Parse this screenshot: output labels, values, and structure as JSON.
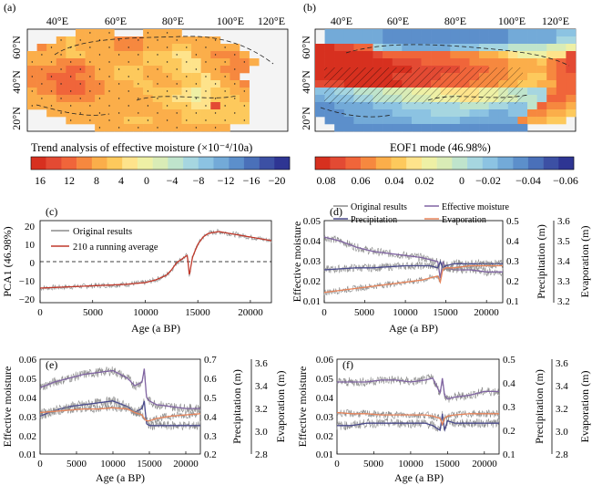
{
  "chart_data": [
    {
      "id": "a",
      "type": "heatmap",
      "panel_label": "(a)",
      "top_ticks": [
        "40°E",
        "60°E",
        "80°E",
        "100°E",
        "120°E"
      ],
      "lat_ticks": [
        "60°N",
        "40°N",
        "20°N"
      ],
      "caption": "Trend analysis of effective moisture (×10⁻⁴/10a)",
      "colorbar": {
        "labels": [
          "16",
          "12",
          "8",
          "4",
          "0",
          "−4",
          "−8",
          "−12",
          "−16",
          "−20"
        ],
        "colors": [
          "#d7301f",
          "#e34a33",
          "#f0653a",
          "#f6883f",
          "#fbae4a",
          "#fdc95c",
          "#fee38b",
          "#eef0a5",
          "#d9ecb6",
          "#bfe4cc",
          "#a6d6e0",
          "#8cc3e2",
          "#73aad8",
          "#5c8fcb",
          "#4a70b9",
          "#3c50a4",
          "#2e3593"
        ]
      },
      "grid": [
        "-----EEEE---EEEE-----------",
        "---EFEEEEDDDEEEEEEEE-------",
        "-DEEFEEEEDDDEEEFFEEEEE-----",
        "EEEEFFEEEEEEFFFGGEEDDDE----",
        "EEEDDDEEEEEEFFFFGGEEEDDE---",
        "DDDDCCDEEFFFEEFFGGEEDDD----",
        "DDCCCDDEEFFFEEEFFFGEED-----",
        "DDDCCCDDEEEFFEEEFFGGEED----",
        "EDDCCCDDEEEEFFFFGHGFFEE----",
        "EEEDDDDEEEEEEFFGGHGFFFE----",
        "EEEEEEEEEEEEEEFFFGGBFFF----",
        "--EEEEEEEEEEEEEEFFFFFFF----",
        "----EEEEEEFFFEEEFFFFFFF----",
        "-------EEEEEEEEEEEEEE------"
      ]
    },
    {
      "id": "b",
      "type": "heatmap",
      "panel_label": "(b)",
      "top_ticks": [
        "40°E",
        "60°E",
        "80°E",
        "100°E",
        "120°E"
      ],
      "lat_ticks": [
        "60°N",
        "40°N",
        "20°N"
      ],
      "caption": "EOF1 mode (46.98%)",
      "colorbar": {
        "labels": [
          "0.08",
          "0.06",
          "0.04",
          "0.02",
          "0",
          "−0.02",
          "−0.04",
          "−0.06"
        ],
        "colors": [
          "#d7301f",
          "#e34a33",
          "#f0653a",
          "#f6883f",
          "#fbae4a",
          "#fdc95c",
          "#fee38b",
          "#eef0a5",
          "#d9ecb6",
          "#bfe4cc",
          "#a6d6e0",
          "#8cc3e2",
          "#73aad8",
          "#5c8fcb",
          "#4a70b9",
          "#3c50a4",
          "#2e3593"
        ]
      },
      "grid": [
        "-MMMMMMNNNNNNNNNNNNNMMMMMLL",
        "-MMMMMMNNNNNNNNNNNNNMMMMMKK",
        "AABBCCKLLMMMMMLLLKKKJJJJIIH",
        "AAAAAABCCCCCCCDDDEEFGHHHGGB",
        "AAAAAAAABBBCCCCCDDDDEEEFDCB",
        "AAAAAAAAAABBBBBCCCDDEEEEDCB",
        "AAAAAAAABBBBBCCCCDDDEEFFDCC",
        "BBBAAAAAABBBCCCCDDDEEFFEECC",
        "LLKKJJJIIIHHHGGGGHHIJJKKDCC",
        "MLLLKKJJJIIIHHHGGHHIIJJKCCD",
        "NNMMMMLLLKKKKKKJJJKKLLJCDDE",
        "NNNMMMMMLLLLKKKKLLMMLLDDEEF",
        "-NNNMMMMMMLLLLLMMMMMMDEEFF-",
        "--NNNNNNNNNNNNNNNNNNNN-----"
      ]
    },
    {
      "id": "c",
      "type": "line",
      "panel_label": "(c)",
      "xlabel": "Age (a BP)",
      "ylabel": "PCA1 (46.98%)",
      "xlim": [
        0,
        22000
      ],
      "ylim": [
        -20,
        25
      ],
      "xticks": [
        "0",
        "5000",
        "10000",
        "15000",
        "20000"
      ],
      "yticks": [
        "20",
        "10",
        "0",
        "−10",
        "−20"
      ],
      "legend": [
        "Original results",
        "210 a running average"
      ],
      "x": [
        0,
        2000,
        4000,
        6000,
        8000,
        10000,
        11000,
        12000,
        12500,
        13000,
        13500,
        14000,
        14200,
        14500,
        15000,
        15500,
        16000,
        17000,
        18000,
        19000,
        20000,
        21000,
        22000
      ],
      "series": [
        {
          "name": "Original results",
          "values": [
            -12,
            -11.5,
            -11,
            -10.5,
            -10,
            -9,
            -7.5,
            -5,
            -2,
            2,
            4,
            6,
            -5,
            5,
            12,
            16,
            18,
            19,
            18,
            17,
            16,
            15,
            14
          ]
        },
        {
          "name": "210 a running average",
          "values": [
            -12,
            -11.5,
            -11,
            -10.5,
            -10,
            -9,
            -7.5,
            -5,
            -2,
            2,
            4,
            6,
            -5,
            5,
            12,
            16,
            18,
            19,
            18,
            17,
            16,
            15,
            14
          ]
        }
      ]
    },
    {
      "id": "d",
      "type": "line",
      "panel_label": "(d)",
      "xlabel": "Age (a BP)",
      "ylabel": "Effective moisture",
      "y2label": "Precipitation (m)",
      "y3label": "Evaporation (m)",
      "xlim": [
        0,
        22000
      ],
      "xticks": [
        "0",
        "5000",
        "10000",
        "15000",
        "20000"
      ],
      "yticks": [
        "0.05",
        "0.04",
        "0.03",
        "0.02",
        "0.01"
      ],
      "y2ticks": [
        "0.5",
        "0.4",
        "0.3",
        "0.2",
        "0.1"
      ],
      "y3ticks": [
        "3.6",
        "3.5",
        "3.4",
        "3.3",
        "3.2"
      ],
      "legend": [
        "Original results",
        "Effective moisture",
        "Precipitation",
        "Evaporation"
      ],
      "x": [
        0,
        2000,
        4000,
        6000,
        8000,
        10000,
        12000,
        13000,
        14000,
        14300,
        14600,
        15000,
        16000,
        18000,
        20000,
        22000
      ],
      "series": [
        {
          "name": "Effective moisture",
          "axis": "left",
          "values": [
            0.042,
            0.04,
            0.037,
            0.035,
            0.034,
            0.033,
            0.032,
            0.031,
            0.03,
            0.022,
            0.03,
            0.027,
            0.026,
            0.026,
            0.025,
            0.025
          ]
        },
        {
          "name": "Precipitation",
          "axis": "right",
          "values": [
            0.26,
            0.265,
            0.27,
            0.27,
            0.275,
            0.28,
            0.28,
            0.28,
            0.27,
            0.3,
            0.27,
            0.28,
            0.29,
            0.29,
            0.29,
            0.29
          ]
        },
        {
          "name": "Evaporation",
          "axis": "right2",
          "values": [
            3.25,
            3.26,
            3.27,
            3.28,
            3.29,
            3.3,
            3.31,
            3.32,
            3.33,
            3.3,
            3.36,
            3.37,
            3.37,
            3.38,
            3.38,
            3.38
          ]
        }
      ]
    },
    {
      "id": "e",
      "type": "line",
      "panel_label": "(e)",
      "xlabel": "Age (a BP)",
      "ylabel": "Effective moisture",
      "y2label": "Precipitation (m)",
      "y3label": "Evaporation (m)",
      "xlim": [
        0,
        22000
      ],
      "xticks": [
        "0",
        "5000",
        "10000",
        "15000",
        "20000"
      ],
      "yticks": [
        "0.06",
        "0.05",
        "0.04",
        "0.03",
        "0.02",
        "0.01"
      ],
      "y2ticks": [
        "0.7",
        "0.6",
        "0.5",
        "0.4",
        "0.3",
        "0.2"
      ],
      "y3ticks": [
        "3.6",
        "3.4",
        "3.2",
        "3.0",
        "2.8"
      ],
      "x": [
        0,
        2000,
        4000,
        6000,
        8000,
        10000,
        12000,
        13000,
        14000,
        14300,
        14600,
        15000,
        16000,
        18000,
        20000,
        22000
      ],
      "series": [
        {
          "name": "Effective moisture",
          "axis": "left",
          "values": [
            0.045,
            0.048,
            0.05,
            0.052,
            0.053,
            0.054,
            0.05,
            0.046,
            0.048,
            0.055,
            0.04,
            0.038,
            0.036,
            0.035,
            0.034,
            0.034
          ]
        },
        {
          "name": "Precipitation",
          "axis": "right",
          "values": [
            0.4,
            0.43,
            0.45,
            0.46,
            0.47,
            0.48,
            0.45,
            0.42,
            0.44,
            0.48,
            0.36,
            0.35,
            0.35,
            0.35,
            0.35,
            0.35
          ]
        },
        {
          "name": "Evaporation",
          "axis": "right2",
          "values": [
            3.15,
            3.16,
            3.17,
            3.18,
            3.18,
            3.19,
            3.18,
            3.15,
            3.13,
            3.1,
            3.08,
            3.08,
            3.1,
            3.12,
            3.13,
            3.14
          ]
        }
      ]
    },
    {
      "id": "f",
      "type": "line",
      "panel_label": "(f)",
      "xlabel": "Age (a BP)",
      "ylabel": "Effective moisture",
      "y2label": "Precipitation (m)",
      "y3label": "Evaporation (m)",
      "xlim": [
        0,
        22000
      ],
      "xticks": [
        "0",
        "5000",
        "10000",
        "15000",
        "20000"
      ],
      "yticks": [
        "0.06",
        "0.05",
        "0.04",
        "0.03",
        "0.02",
        "0.01"
      ],
      "y2ticks": [
        "0.5",
        "0.4",
        "0.3",
        "0.2",
        "0.1"
      ],
      "y3ticks": [
        "3.6",
        "3.4",
        "3.2",
        "3.0",
        "2.8"
      ],
      "x": [
        0,
        2000,
        4000,
        6000,
        8000,
        10000,
        12000,
        13000,
        14000,
        14300,
        14600,
        15000,
        16000,
        18000,
        20000,
        22000
      ],
      "series": [
        {
          "name": "Effective moisture",
          "axis": "left",
          "values": [
            0.048,
            0.048,
            0.048,
            0.049,
            0.049,
            0.048,
            0.049,
            0.05,
            0.042,
            0.05,
            0.041,
            0.039,
            0.04,
            0.041,
            0.043,
            0.043
          ]
        },
        {
          "name": "Precipitation",
          "axis": "right",
          "values": [
            0.22,
            0.22,
            0.23,
            0.23,
            0.23,
            0.23,
            0.23,
            0.22,
            0.2,
            0.27,
            0.2,
            0.24,
            0.23,
            0.23,
            0.23,
            0.23
          ]
        },
        {
          "name": "Evaporation",
          "axis": "right2",
          "values": [
            3.15,
            3.14,
            3.14,
            3.13,
            3.13,
            3.13,
            3.13,
            3.12,
            3.1,
            3.05,
            3.1,
            3.12,
            3.13,
            3.14,
            3.14,
            3.14
          ]
        }
      ]
    }
  ],
  "colors": {
    "original": "#8c8c8c",
    "running_average": "#c0392b",
    "effective_moisture": "#8064a2",
    "precipitation": "#4a4a8c",
    "evaporation": "#e8845a"
  }
}
